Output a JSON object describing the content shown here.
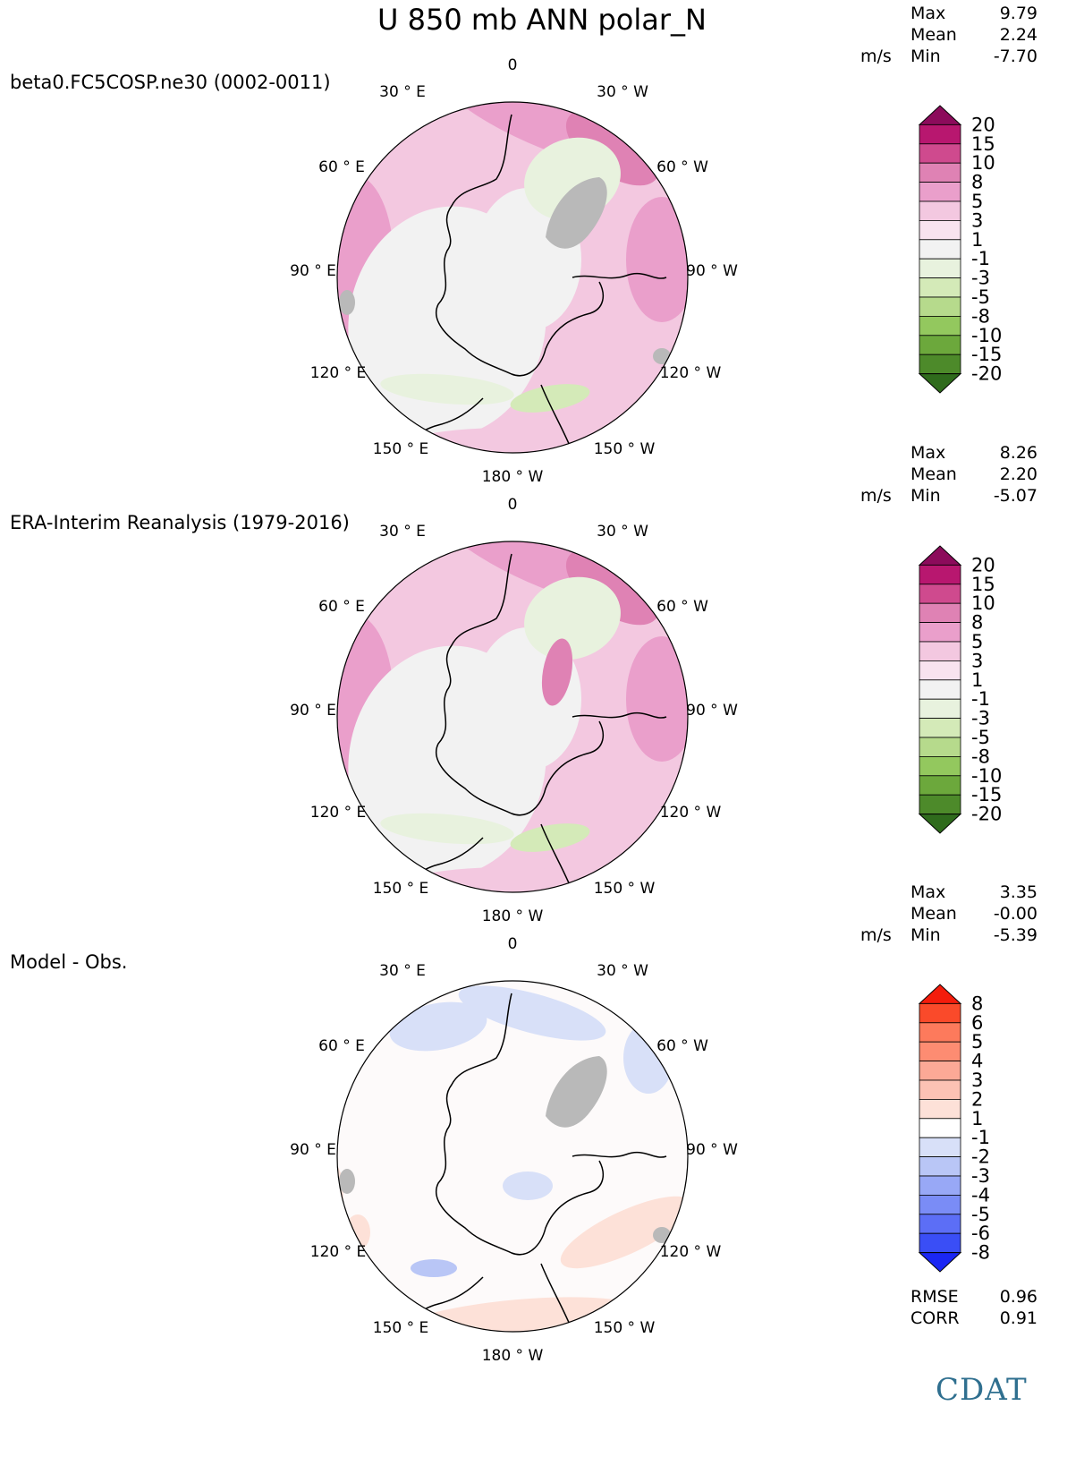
{
  "title": "U 850 mb ANN polar_N",
  "units": "m/s",
  "stat_labels": {
    "max": "Max",
    "mean": "Mean",
    "min": "Min"
  },
  "panels": [
    {
      "label": "beta0.FC5COSP.ne30 (0002-0011)",
      "stats": {
        "max": "9.79",
        "mean": "2.24",
        "min": "-7.70"
      }
    },
    {
      "label": "ERA-Interim Reanalysis (1979-2016)",
      "stats": {
        "max": "8.26",
        "mean": "2.20",
        "min": "-5.07"
      }
    },
    {
      "label": "Model - Obs.",
      "stats": {
        "max": "3.35",
        "mean": "-0.00",
        "min": "-5.39"
      }
    }
  ],
  "longitude_labels": [
    "0",
    "30 ° W",
    "60 ° W",
    "90 ° W",
    "120 ° W",
    "150 ° W",
    "180 ° W",
    "150 ° E",
    "120 ° E",
    "90 ° E",
    "60 ° E",
    "30 ° E"
  ],
  "colorbars": {
    "field": {
      "labels": [
        "20",
        "15",
        "10",
        "8",
        "5",
        "3",
        "1",
        "-1",
        "-3",
        "-5",
        "-8",
        "-10",
        "-15",
        "-20"
      ],
      "colors": [
        "#8c0b5b",
        "#b8176f",
        "#cf4a8e",
        "#df82b4",
        "#ea9fcb",
        "#f3c8e0",
        "#f8e3ef",
        "#f2f2f2",
        "#e8f2de",
        "#d4eab8",
        "#b6da8c",
        "#93c85e",
        "#6ca83c",
        "#4d8a2a",
        "#2f6b1c"
      ]
    },
    "diff": {
      "labels": [
        "8",
        "6",
        "5",
        "4",
        "3",
        "2",
        "1",
        "-1",
        "-2",
        "-3",
        "-4",
        "-5",
        "-6",
        "-8"
      ],
      "colors": [
        "#f41c0c",
        "#fa4a2a",
        "#fd7a5c",
        "#fd8c72",
        "#fca996",
        "#fcc2b4",
        "#fde1d8",
        "#ffffff",
        "#d8e0f8",
        "#b9c6f6",
        "#98a8f6",
        "#7a8cf6",
        "#5c6ef6",
        "#3a4ef6",
        "#1a26f4"
      ]
    }
  },
  "chart_data": [
    {
      "type": "heatmap",
      "title": "beta0.FC5COSP.ne30 (0002-0011)",
      "variable": "U 850 mb ANN polar_N",
      "units": "m/s",
      "projection": "polar north",
      "stats": {
        "max": 9.79,
        "mean": 2.24,
        "min": -7.7
      },
      "levels": [
        -20,
        -15,
        -10,
        -8,
        -5,
        -3,
        -1,
        1,
        3,
        5,
        8,
        10,
        15,
        20
      ]
    },
    {
      "type": "heatmap",
      "title": "ERA-Interim Reanalysis (1979-2016)",
      "variable": "U 850 mb ANN polar_N",
      "units": "m/s",
      "projection": "polar north",
      "stats": {
        "max": 8.26,
        "mean": 2.2,
        "min": -5.07
      },
      "levels": [
        -20,
        -15,
        -10,
        -8,
        -5,
        -3,
        -1,
        1,
        3,
        5,
        8,
        10,
        15,
        20
      ]
    },
    {
      "type": "heatmap",
      "title": "Model - Obs.",
      "variable": "U 850 mb ANN polar_N",
      "units": "m/s",
      "projection": "polar north",
      "stats": {
        "max": 3.35,
        "mean": -0.0,
        "min": -5.39,
        "rmse": 0.96,
        "corr": 0.91
      },
      "levels": [
        -8,
        -6,
        -5,
        -4,
        -3,
        -2,
        -1,
        1,
        2,
        3,
        4,
        5,
        6,
        8
      ]
    }
  ],
  "metrics": {
    "rmse_label": "RMSE",
    "rmse": "0.96",
    "corr_label": "CORR",
    "corr": "0.91"
  },
  "logo_text": "CDAT",
  "colors": {
    "land_missing": "#b9b9b9",
    "coast": "#000000"
  }
}
